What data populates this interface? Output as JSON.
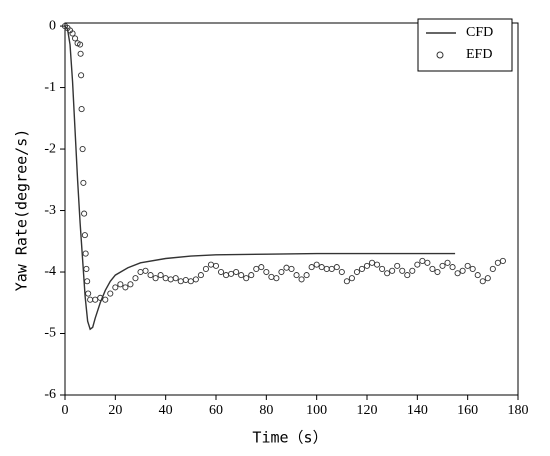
{
  "chart_data": {
    "type": "line",
    "xlabel": "Time（s）",
    "ylabel": "Yaw Rate(degree/s)",
    "xlim": [
      0,
      180
    ],
    "xticks": [
      0,
      20,
      40,
      60,
      80,
      100,
      120,
      140,
      160,
      180
    ],
    "ylim": [
      -6,
      0.05
    ],
    "yticks": [
      -6,
      -5,
      -4,
      -3,
      -2,
      -1,
      0
    ],
    "legend": "upper right",
    "grid": false,
    "series": [
      {
        "name": "CFD",
        "color": "#333333",
        "mode": "line",
        "x": [
          0,
          1,
          2,
          3,
          4,
          5,
          6,
          7,
          8,
          9,
          10,
          11,
          12,
          14,
          16,
          18,
          20,
          25,
          30,
          40,
          50,
          60,
          80,
          100,
          155
        ],
        "values": [
          0,
          -0.05,
          -0.3,
          -0.9,
          -1.7,
          -2.5,
          -3.2,
          -3.8,
          -4.4,
          -4.8,
          -4.93,
          -4.9,
          -4.75,
          -4.5,
          -4.3,
          -4.15,
          -4.05,
          -3.93,
          -3.85,
          -3.78,
          -3.74,
          -3.72,
          -3.71,
          -3.7,
          -3.7
        ]
      },
      {
        "name": "EFD",
        "color": "#333333",
        "mode": "markers",
        "x": [
          0,
          1,
          2,
          3,
          4,
          5,
          6,
          6.2,
          6.4,
          6.6,
          7,
          7.3,
          7.6,
          7.9,
          8.2,
          8.5,
          8.8,
          9.2,
          10,
          12,
          14,
          16,
          18,
          20,
          22,
          24,
          26,
          28,
          30,
          32,
          34,
          36,
          38,
          40,
          42,
          44,
          46,
          48,
          50,
          52,
          54,
          56,
          58,
          60,
          62,
          64,
          66,
          68,
          70,
          72,
          74,
          76,
          78,
          80,
          82,
          84,
          86,
          88,
          90,
          92,
          94,
          96,
          98,
          100,
          102,
          104,
          106,
          108,
          110,
          112,
          114,
          116,
          118,
          120,
          122,
          124,
          126,
          128,
          130,
          132,
          134,
          136,
          138,
          140,
          142,
          144,
          146,
          148,
          150,
          152,
          154,
          156,
          158,
          160,
          162,
          164,
          166,
          168,
          170,
          172,
          174
        ],
        "values": [
          0,
          -0.03,
          -0.07,
          -0.12,
          -0.2,
          -0.28,
          -0.3,
          -0.45,
          -0.8,
          -1.35,
          -2.0,
          -2.55,
          -3.05,
          -3.4,
          -3.7,
          -3.95,
          -4.15,
          -4.35,
          -4.45,
          -4.45,
          -4.42,
          -4.45,
          -4.35,
          -4.25,
          -4.2,
          -4.25,
          -4.2,
          -4.1,
          -4.0,
          -3.98,
          -4.05,
          -4.1,
          -4.05,
          -4.1,
          -4.12,
          -4.1,
          -4.15,
          -4.13,
          -4.15,
          -4.12,
          -4.05,
          -3.95,
          -3.88,
          -3.9,
          -4.0,
          -4.05,
          -4.03,
          -4.0,
          -4.05,
          -4.1,
          -4.05,
          -3.95,
          -3.92,
          -4.0,
          -4.08,
          -4.1,
          -4.0,
          -3.93,
          -3.95,
          -4.05,
          -4.12,
          -4.05,
          -3.92,
          -3.88,
          -3.92,
          -3.95,
          -3.95,
          -3.92,
          -4.0,
          -4.15,
          -4.1,
          -4.0,
          -3.95,
          -3.9,
          -3.85,
          -3.88,
          -3.95,
          -4.02,
          -3.98,
          -3.9,
          -3.98,
          -4.05,
          -3.98,
          -3.88,
          -3.82,
          -3.85,
          -3.95,
          -4.0,
          -3.9,
          -3.85,
          -3.92,
          -4.02,
          -3.98,
          -3.9,
          -3.95,
          -4.05,
          -4.15,
          -4.1,
          -3.95,
          -3.85,
          -3.82
        ]
      }
    ]
  }
}
